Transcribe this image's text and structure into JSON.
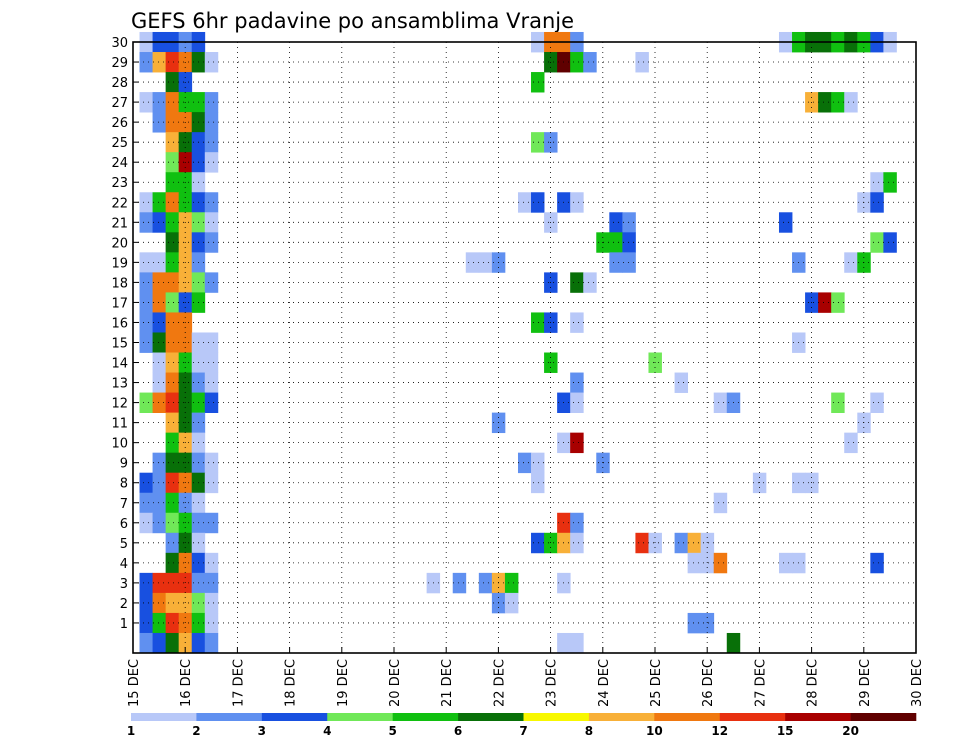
{
  "chart_data": {
    "type": "heatmap",
    "title": "GEFS 6hr padavine po ansamblima Vranje",
    "x_ticks": [
      "15 DEC",
      "16 DEC",
      "17 DEC",
      "18 DEC",
      "19 DEC",
      "20 DEC",
      "21 DEC",
      "22 DEC",
      "23 DEC",
      "24 DEC",
      "25 DEC",
      "26 DEC",
      "27 DEC",
      "28 DEC",
      "29 DEC",
      "30 DEC"
    ],
    "y_ticks": [
      1,
      2,
      3,
      4,
      5,
      6,
      7,
      8,
      9,
      10,
      11,
      12,
      13,
      14,
      15,
      16,
      17,
      18,
      19,
      20,
      21,
      22,
      23,
      24,
      25,
      26,
      27,
      28,
      29,
      30
    ],
    "steps_per_day": 4,
    "ylim": [
      0,
      30
    ],
    "grid": true,
    "colorbar": {
      "labels": [
        "1",
        "2",
        "3",
        "4",
        "5",
        "6",
        "7",
        "8",
        "10",
        "12",
        "15",
        "20"
      ],
      "colors": [
        "#b8c8f8",
        "#6090f0",
        "#1850e0",
        "#70e858",
        "#10c010",
        "#087008",
        "#f8f800",
        "#f8b038",
        "#f07810",
        "#e83010",
        "#a80000",
        "#600000"
      ]
    },
    "members": [
      {
        "member": 30,
        "cells": [
          [
            1,
            1
          ],
          [
            2,
            3
          ],
          [
            3,
            3
          ],
          [
            4,
            2
          ],
          [
            5,
            3
          ],
          [
            31,
            1
          ],
          [
            32,
            9
          ],
          [
            33,
            9
          ],
          [
            34,
            2
          ],
          [
            50,
            1
          ],
          [
            51,
            5
          ],
          [
            52,
            6
          ],
          [
            53,
            6
          ],
          [
            54,
            5
          ],
          [
            55,
            6
          ],
          [
            56,
            5
          ],
          [
            57,
            3
          ],
          [
            58,
            1
          ]
        ]
      },
      {
        "member": 29,
        "cells": [
          [
            1,
            2
          ],
          [
            2,
            8
          ],
          [
            3,
            10
          ],
          [
            4,
            9
          ],
          [
            5,
            6
          ],
          [
            6,
            1
          ],
          [
            32,
            6
          ],
          [
            33,
            12
          ],
          [
            34,
            5
          ],
          [
            35,
            2
          ],
          [
            39,
            1
          ]
        ]
      },
      {
        "member": 28,
        "cells": [
          [
            3,
            6
          ],
          [
            4,
            3
          ],
          [
            31,
            5
          ]
        ]
      },
      {
        "member": 27,
        "cells": [
          [
            1,
            1
          ],
          [
            2,
            2
          ],
          [
            3,
            9
          ],
          [
            4,
            5
          ],
          [
            5,
            5
          ],
          [
            6,
            2
          ],
          [
            52,
            8
          ],
          [
            53,
            6
          ],
          [
            54,
            5
          ],
          [
            55,
            1
          ]
        ]
      },
      {
        "member": 26,
        "cells": [
          [
            2,
            2
          ],
          [
            3,
            9
          ],
          [
            4,
            9
          ],
          [
            5,
            6
          ],
          [
            6,
            2
          ]
        ]
      },
      {
        "member": 25,
        "cells": [
          [
            3,
            8
          ],
          [
            4,
            6
          ],
          [
            5,
            3
          ],
          [
            6,
            2
          ],
          [
            31,
            4
          ],
          [
            32,
            2
          ]
        ]
      },
      {
        "member": 24,
        "cells": [
          [
            3,
            4
          ],
          [
            4,
            11
          ],
          [
            5,
            3
          ],
          [
            6,
            1
          ]
        ]
      },
      {
        "member": 23,
        "cells": [
          [
            3,
            5
          ],
          [
            4,
            5
          ],
          [
            5,
            1
          ],
          [
            57,
            1
          ],
          [
            58,
            5
          ]
        ]
      },
      {
        "member": 22,
        "cells": [
          [
            1,
            1
          ],
          [
            2,
            5
          ],
          [
            3,
            9
          ],
          [
            4,
            5
          ],
          [
            5,
            3
          ],
          [
            6,
            2
          ],
          [
            30,
            1
          ],
          [
            31,
            3
          ],
          [
            33,
            3
          ],
          [
            34,
            1
          ],
          [
            56,
            1
          ],
          [
            57,
            3
          ]
        ]
      },
      {
        "member": 21,
        "cells": [
          [
            1,
            2
          ],
          [
            2,
            3
          ],
          [
            3,
            5
          ],
          [
            4,
            8
          ],
          [
            5,
            4
          ],
          [
            6,
            1
          ],
          [
            32,
            1
          ],
          [
            37,
            3
          ],
          [
            38,
            2
          ],
          [
            50,
            3
          ]
        ]
      },
      {
        "member": 20,
        "cells": [
          [
            3,
            6
          ],
          [
            4,
            8
          ],
          [
            5,
            3
          ],
          [
            6,
            2
          ],
          [
            36,
            5
          ],
          [
            37,
            5
          ],
          [
            38,
            3
          ],
          [
            57,
            4
          ],
          [
            58,
            3
          ]
        ]
      },
      {
        "member": 19,
        "cells": [
          [
            1,
            1
          ],
          [
            2,
            1
          ],
          [
            3,
            5
          ],
          [
            4,
            8
          ],
          [
            5,
            2
          ],
          [
            26,
            1
          ],
          [
            27,
            1
          ],
          [
            28,
            2
          ],
          [
            37,
            2
          ],
          [
            38,
            2
          ],
          [
            51,
            2
          ],
          [
            55,
            1
          ],
          [
            56,
            5
          ]
        ]
      },
      {
        "member": 18,
        "cells": [
          [
            1,
            2
          ],
          [
            2,
            9
          ],
          [
            3,
            9
          ],
          [
            4,
            8
          ],
          [
            5,
            4
          ],
          [
            6,
            2
          ],
          [
            32,
            3
          ],
          [
            34,
            6
          ],
          [
            35,
            1
          ]
        ]
      },
      {
        "member": 17,
        "cells": [
          [
            1,
            2
          ],
          [
            2,
            9
          ],
          [
            3,
            4
          ],
          [
            4,
            3
          ],
          [
            5,
            5
          ],
          [
            52,
            3
          ],
          [
            53,
            11
          ],
          [
            54,
            4
          ]
        ]
      },
      {
        "member": 16,
        "cells": [
          [
            1,
            2
          ],
          [
            2,
            3
          ],
          [
            3,
            9
          ],
          [
            4,
            9
          ],
          [
            31,
            5
          ],
          [
            32,
            3
          ],
          [
            34,
            1
          ]
        ]
      },
      {
        "member": 15,
        "cells": [
          [
            1,
            2
          ],
          [
            2,
            6
          ],
          [
            3,
            9
          ],
          [
            4,
            9
          ],
          [
            5,
            1
          ],
          [
            6,
            1
          ],
          [
            51,
            1
          ]
        ]
      },
      {
        "member": 14,
        "cells": [
          [
            2,
            1
          ],
          [
            3,
            8
          ],
          [
            4,
            5
          ],
          [
            5,
            1
          ],
          [
            6,
            1
          ],
          [
            32,
            5
          ],
          [
            40,
            4
          ]
        ]
      },
      {
        "member": 13,
        "cells": [
          [
            2,
            1
          ],
          [
            3,
            9
          ],
          [
            4,
            6
          ],
          [
            5,
            2
          ],
          [
            6,
            1
          ],
          [
            34,
            2
          ],
          [
            42,
            1
          ]
        ]
      },
      {
        "member": 12,
        "cells": [
          [
            1,
            4
          ],
          [
            2,
            9
          ],
          [
            3,
            10
          ],
          [
            4,
            6
          ],
          [
            5,
            5
          ],
          [
            6,
            3
          ],
          [
            33,
            3
          ],
          [
            34,
            1
          ],
          [
            45,
            1
          ],
          [
            46,
            2
          ],
          [
            54,
            4
          ],
          [
            57,
            1
          ]
        ]
      },
      {
        "member": 11,
        "cells": [
          [
            3,
            8
          ],
          [
            4,
            6
          ],
          [
            5,
            2
          ],
          [
            28,
            2
          ],
          [
            56,
            1
          ]
        ]
      },
      {
        "member": 10,
        "cells": [
          [
            3,
            5
          ],
          [
            4,
            8
          ],
          [
            5,
            1
          ],
          [
            33,
            1
          ],
          [
            34,
            11
          ],
          [
            55,
            1
          ]
        ]
      },
      {
        "member": 9,
        "cells": [
          [
            2,
            2
          ],
          [
            3,
            6
          ],
          [
            4,
            6
          ],
          [
            5,
            2
          ],
          [
            6,
            1
          ],
          [
            30,
            2
          ],
          [
            31,
            1
          ],
          [
            36,
            2
          ]
        ]
      },
      {
        "member": 8,
        "cells": [
          [
            1,
            3
          ],
          [
            2,
            2
          ],
          [
            3,
            10
          ],
          [
            4,
            9
          ],
          [
            5,
            6
          ],
          [
            6,
            1
          ],
          [
            31,
            1
          ],
          [
            48,
            1
          ],
          [
            51,
            1
          ],
          [
            52,
            1
          ]
        ]
      },
      {
        "member": 7,
        "cells": [
          [
            1,
            2
          ],
          [
            2,
            2
          ],
          [
            3,
            5
          ],
          [
            4,
            2
          ],
          [
            5,
            1
          ],
          [
            45,
            1
          ]
        ]
      },
      {
        "member": 6,
        "cells": [
          [
            1,
            1
          ],
          [
            2,
            2
          ],
          [
            3,
            4
          ],
          [
            4,
            5
          ],
          [
            5,
            2
          ],
          [
            6,
            2
          ],
          [
            33,
            10
          ],
          [
            34,
            2
          ]
        ]
      },
      {
        "member": 5,
        "cells": [
          [
            3,
            2
          ],
          [
            4,
            6
          ],
          [
            5,
            1
          ],
          [
            31,
            3
          ],
          [
            32,
            5
          ],
          [
            33,
            8
          ],
          [
            34,
            1
          ],
          [
            39,
            10
          ],
          [
            40,
            1
          ],
          [
            42,
            2
          ],
          [
            43,
            8
          ],
          [
            44,
            1
          ]
        ]
      },
      {
        "member": 4,
        "cells": [
          [
            3,
            6
          ],
          [
            4,
            9
          ],
          [
            5,
            3
          ],
          [
            6,
            1
          ],
          [
            43,
            1
          ],
          [
            44,
            1
          ],
          [
            45,
            9
          ],
          [
            50,
            1
          ],
          [
            51,
            1
          ],
          [
            57,
            3
          ]
        ]
      },
      {
        "member": 3,
        "cells": [
          [
            1,
            3
          ],
          [
            2,
            10
          ],
          [
            3,
            10
          ],
          [
            4,
            10
          ],
          [
            5,
            2
          ],
          [
            6,
            2
          ],
          [
            23,
            1
          ],
          [
            25,
            2
          ],
          [
            27,
            2
          ],
          [
            28,
            8
          ],
          [
            29,
            5
          ],
          [
            33,
            1
          ]
        ]
      },
      {
        "member": 2,
        "cells": [
          [
            1,
            3
          ],
          [
            2,
            9
          ],
          [
            3,
            8
          ],
          [
            4,
            8
          ],
          [
            5,
            4
          ],
          [
            6,
            1
          ],
          [
            28,
            2
          ],
          [
            29,
            1
          ]
        ]
      },
      {
        "member": 1,
        "cells": [
          [
            1,
            3
          ],
          [
            2,
            5
          ],
          [
            3,
            10
          ],
          [
            4,
            9
          ],
          [
            5,
            5
          ],
          [
            6,
            1
          ],
          [
            43,
            2
          ],
          [
            44,
            2
          ]
        ]
      },
      {
        "member": 0,
        "cells": [
          [
            1,
            2
          ],
          [
            2,
            3
          ],
          [
            3,
            6
          ],
          [
            4,
            8
          ],
          [
            5,
            3
          ],
          [
            6,
            2
          ],
          [
            33,
            1
          ],
          [
            34,
            1
          ],
          [
            46,
            6
          ]
        ]
      }
    ]
  }
}
